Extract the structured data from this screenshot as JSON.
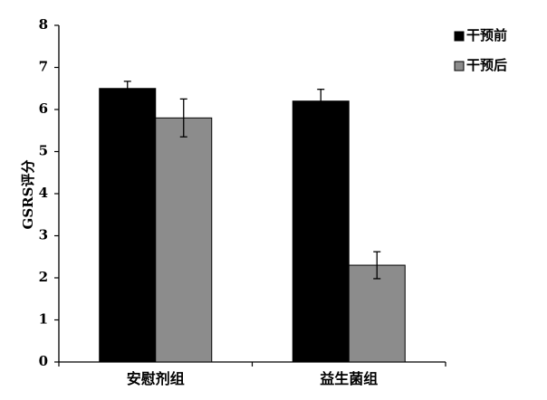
{
  "chart_data": {
    "type": "bar",
    "title": "",
    "xlabel": "",
    "ylabel": "GSRS评分",
    "ylim": [
      0,
      8
    ],
    "yticks": [
      0,
      1,
      2,
      3,
      4,
      5,
      6,
      7,
      8
    ],
    "grid": false,
    "legend_position": "top-right",
    "categories": [
      "安慰剂组",
      "益生菌组"
    ],
    "series": [
      {
        "name": "干预前",
        "color": "#000000",
        "values": [
          6.5,
          6.2
        ],
        "errors": [
          0.17,
          0.28
        ]
      },
      {
        "name": "干预后",
        "color": "#8c8c8c",
        "values": [
          5.8,
          2.3
        ],
        "errors": [
          0.45,
          0.32
        ]
      }
    ]
  }
}
